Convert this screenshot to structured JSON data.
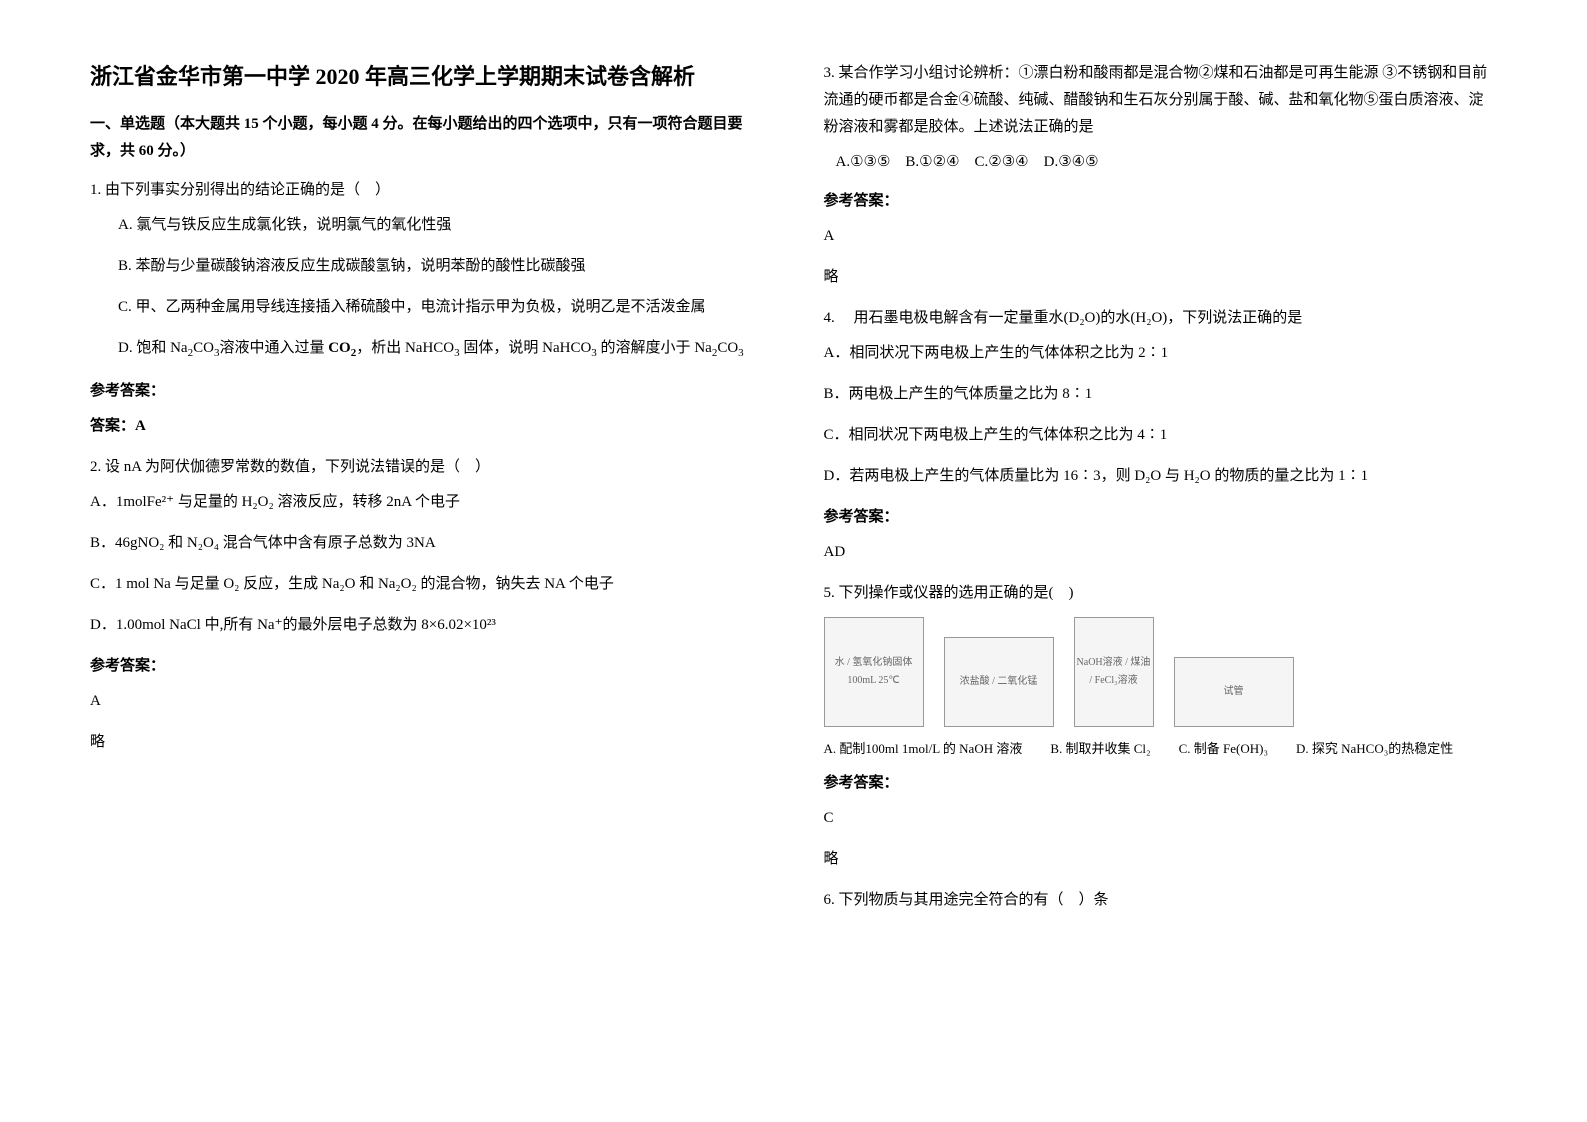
{
  "title": "浙江省金华市第一中学 2020 年高三化学上学期期末试卷含解析",
  "section_header": "一、单选题（本大题共 15 个小题，每小题 4 分。在每小题给出的四个选项中，只有一项符合题目要求，共 60 分。）",
  "q1": {
    "stem": "1. 由下列事实分别得出的结论正确的是（　）",
    "optA": "A. 氯气与铁反应生成氯化铁，说明氯气的氧化性强",
    "optB": "B. 苯酚与少量碳酸钠溶液反应生成碳酸氢钠，说明苯酚的酸性比碳酸强",
    "optC": "C. 甲、乙两种金属用导线连接插入稀硫酸中，电流计指示甲为负极，说明乙是不活泼金属",
    "optD_pre": "D. 饱和 ",
    "optD_mid1": "溶液中通入过量",
    "optD_mid2": "，析出 NaHCO",
    "optD_mid3": "固体，说明 NaHCO",
    "optD_mid4": "的溶解度小于",
    "answer_label": "参考答案：",
    "answer": "答案：A"
  },
  "q2": {
    "stem": "2. 设 nA 为阿伏伽德罗常数的数值，下列说法错误的是（　）",
    "optA": "A．1molFe²⁺ 与足量的 H₂O₂ 溶液反应，转移 2nA 个电子",
    "optB": "B．46gNO₂ 和 N₂O₄ 混合气体中含有原子总数为 3NA",
    "optC": "C．1 mol Na 与足量 O₂ 反应，生成 Na₂O 和 Na₂O₂ 的混合物，钠失去 NA 个电子",
    "optD": "D．1.00mol NaCl 中,所有 Na⁺的最外层电子总数为 8×6.02×10²³",
    "answer_label": "参考答案：",
    "answer": "A",
    "answer_extra": "略"
  },
  "q3": {
    "stem": "3. 某合作学习小组讨论辨析：①漂白粉和酸雨都是混合物②煤和石油都是可再生能源 ③不锈钢和目前流通的硬币都是合金④硫酸、纯碱、醋酸钠和生石灰分别属于酸、碱、盐和氧化物⑤蛋白质溶液、淀粉溶液和雾都是胶体。上述说法正确的是",
    "options": "A.①③⑤　B.①②④　C.②③④　D.③④⑤",
    "answer_label": "参考答案：",
    "answer": "A",
    "answer_extra": "略"
  },
  "q4": {
    "stem": "4. 　用石墨电极电解含有一定量重水(D₂O)的水(H₂O)，下列说法正确的是",
    "optA": "A．相同状况下两电极上产生的气体体积之比为 2∶1",
    "optB": "B．两电极上产生的气体质量之比为 8∶1",
    "optC": "C．相同状况下两电极上产生的气体体积之比为 4∶1",
    "optD": "D．若两电极上产生的气体质量比为 16∶3，则 D₂O 与 H₂O 的物质的量之比为 1∶1",
    "answer_label": "参考答案：",
    "answer": "AD"
  },
  "q5": {
    "stem": "5. 下列操作或仪器的选用正确的是(　)",
    "imgA_label": "水 / 氢氧化钠固体 100mL 25℃",
    "imgB_label": "浓盐酸 / 二氧化锰",
    "imgC_label": "NaOH溶液 / 煤油 / FeCl₃溶液",
    "imgD_label": "试管",
    "optA": "A. 配制100ml 1mol/L 的 NaOH 溶液",
    "optB": "B. 制取并收集 Cl₂",
    "optC": "C. 制备 Fe(OH)₃",
    "optD": "D. 探究 NaHCO₃的热稳定性",
    "answer_label": "参考答案：",
    "answer": "C",
    "answer_extra": "略"
  },
  "q6": {
    "stem": "6. 下列物质与其用途完全符合的有（　）条"
  }
}
